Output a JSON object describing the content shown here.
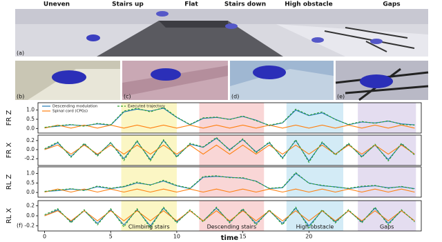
{
  "figure": {
    "scenes": [
      "Uneven",
      "Stairs up",
      "Flat",
      "Stairs down",
      "High obstacle",
      "Gaps"
    ],
    "tags": [
      "(a)",
      "(b)",
      "(c)",
      "(d)",
      "(e)",
      "(f)"
    ],
    "regions": [
      {
        "label": "Climbing stairs",
        "start": 5.8,
        "end": 10.0,
        "color": "#fbf6c4"
      },
      {
        "label": "Descending stairs",
        "start": 11.7,
        "end": 16.6,
        "color": "#f9d6d6"
      },
      {
        "label": "High obstacle",
        "start": 18.3,
        "end": 22.6,
        "color": "#d3ebf6"
      },
      {
        "label": "Gaps",
        "start": 23.7,
        "end": 28.1,
        "color": "#e4ddf0"
      }
    ]
  },
  "chart_data": [
    {
      "type": "line",
      "ylabel": "FR Z",
      "xlim": [
        -0.5,
        28.5
      ],
      "ylim": [
        -0.25,
        1.4
      ],
      "yticks": [
        {
          "value": 0,
          "label": "0.0"
        },
        {
          "value": 0.5,
          "label": "0.5"
        },
        {
          "value": 1,
          "label": "1.0"
        }
      ],
      "x": [
        0,
        1,
        2,
        3,
        4,
        5,
        6,
        7,
        8,
        9,
        10,
        11,
        12,
        13,
        14,
        15,
        16,
        17,
        18,
        19,
        20,
        21,
        22,
        23,
        24,
        25,
        26,
        27,
        28
      ],
      "series": [
        {
          "name": "Descending modulation",
          "color": "#1f77b4",
          "values": [
            0.05,
            0.12,
            0.2,
            0.15,
            0.25,
            0.18,
            0.9,
            1.05,
            0.95,
            1.1,
            0.6,
            0.2,
            0.55,
            0.6,
            0.5,
            0.65,
            0.45,
            0.15,
            0.3,
            1.0,
            0.7,
            0.85,
            0.5,
            0.2,
            0.35,
            0.3,
            0.4,
            0.25,
            0.2
          ]
        },
        {
          "name": "Spinal cord (CPGs)",
          "color": "#ff7f0e",
          "values": [
            0.02,
            0.18,
            0.02,
            0.18,
            0.02,
            0.18,
            0.02,
            0.18,
            0.02,
            0.18,
            0.02,
            0.18,
            0.02,
            0.18,
            0.02,
            0.18,
            0.02,
            0.18,
            0.02,
            0.18,
            0.02,
            0.18,
            0.02,
            0.18,
            0.02,
            0.18,
            0.02,
            0.18,
            0.02
          ]
        },
        {
          "name": "Executed trajectory",
          "color": "#2ca02c",
          "dashed": true,
          "values": [
            0.06,
            0.15,
            0.22,
            0.12,
            0.28,
            0.2,
            0.95,
            1.1,
            0.9,
            1.15,
            0.62,
            0.22,
            0.58,
            0.62,
            0.48,
            0.68,
            0.42,
            0.18,
            0.32,
            1.05,
            0.72,
            0.9,
            0.48,
            0.22,
            0.38,
            0.28,
            0.42,
            0.22,
            0.18
          ]
        }
      ]
    },
    {
      "type": "line",
      "ylabel": "FR X",
      "xlim": [
        -0.5,
        28.5
      ],
      "ylim": [
        -0.35,
        0.32
      ],
      "yticks": [
        {
          "value": -0.2,
          "label": "-0.2"
        },
        {
          "value": 0,
          "label": "0.0"
        },
        {
          "value": 0.2,
          "label": "0.2"
        }
      ],
      "x": [
        0,
        1,
        2,
        3,
        4,
        5,
        6,
        7,
        8,
        9,
        10,
        11,
        12,
        13,
        14,
        15,
        16,
        17,
        18,
        19,
        20,
        21,
        22,
        23,
        24,
        25,
        26,
        27,
        28
      ],
      "series": [
        {
          "color": "#1f77b4",
          "values": [
            0.0,
            0.15,
            -0.15,
            0.12,
            -0.12,
            0.15,
            -0.2,
            0.18,
            -0.22,
            0.2,
            -0.15,
            0.12,
            0.05,
            0.25,
            0.0,
            0.22,
            -0.05,
            0.15,
            -0.18,
            0.2,
            -0.25,
            0.15,
            -0.1,
            0.12,
            -0.15,
            0.1,
            -0.22,
            0.12,
            -0.1
          ]
        },
        {
          "color": "#ff7f0e",
          "values": [
            0.0,
            0.1,
            -0.1,
            0.1,
            -0.1,
            0.1,
            -0.1,
            0.1,
            -0.1,
            0.1,
            -0.1,
            0.1,
            -0.1,
            0.1,
            -0.1,
            0.1,
            -0.1,
            0.1,
            -0.1,
            0.1,
            -0.1,
            0.1,
            -0.1,
            0.1,
            -0.1,
            0.1,
            -0.1,
            0.1,
            -0.1
          ]
        },
        {
          "color": "#2ca02c",
          "dashed": true,
          "values": [
            0.02,
            0.17,
            -0.17,
            0.14,
            -0.14,
            0.16,
            -0.24,
            0.2,
            -0.25,
            0.22,
            -0.17,
            0.14,
            0.06,
            0.27,
            -0.02,
            0.24,
            -0.07,
            0.17,
            -0.2,
            0.22,
            -0.28,
            0.17,
            -0.12,
            0.14,
            -0.17,
            0.12,
            -0.25,
            0.14,
            -0.12
          ]
        }
      ]
    },
    {
      "type": "line",
      "ylabel": "RL Z",
      "xlim": [
        -0.5,
        28.5
      ],
      "ylim": [
        -0.25,
        1.35
      ],
      "yticks": [
        {
          "value": 0,
          "label": "0.0"
        },
        {
          "value": 0.5,
          "label": "0.5"
        },
        {
          "value": 1,
          "label": "1.0"
        }
      ],
      "x": [
        0,
        1,
        2,
        3,
        4,
        5,
        6,
        7,
        8,
        9,
        10,
        11,
        12,
        13,
        14,
        15,
        16,
        17,
        18,
        19,
        20,
        21,
        22,
        23,
        24,
        25,
        26,
        27,
        28
      ],
      "series": [
        {
          "color": "#1f77b4",
          "values": [
            0.05,
            0.1,
            0.18,
            0.12,
            0.3,
            0.2,
            0.3,
            0.5,
            0.4,
            0.6,
            0.35,
            0.2,
            0.8,
            0.85,
            0.8,
            0.75,
            0.6,
            0.2,
            0.25,
            1.0,
            0.5,
            0.35,
            0.3,
            0.2,
            0.3,
            0.35,
            0.25,
            0.3,
            0.2
          ]
        },
        {
          "color": "#ff7f0e",
          "values": [
            0.02,
            0.18,
            0.02,
            0.18,
            0.02,
            0.18,
            0.02,
            0.18,
            0.02,
            0.18,
            0.02,
            0.18,
            0.02,
            0.18,
            0.02,
            0.18,
            0.02,
            0.18,
            0.02,
            0.18,
            0.02,
            0.18,
            0.02,
            0.18,
            0.02,
            0.18,
            0.02,
            0.18,
            0.02
          ]
        },
        {
          "color": "#2ca02c",
          "dashed": true,
          "values": [
            0.06,
            0.12,
            0.2,
            0.1,
            0.34,
            0.22,
            0.32,
            0.55,
            0.38,
            0.65,
            0.37,
            0.22,
            0.84,
            0.88,
            0.78,
            0.78,
            0.58,
            0.22,
            0.27,
            1.05,
            0.48,
            0.38,
            0.28,
            0.22,
            0.33,
            0.37,
            0.22,
            0.32,
            0.18
          ]
        }
      ]
    },
    {
      "type": "line",
      "ylabel": "RL X",
      "xlim": [
        -0.5,
        28.5
      ],
      "ylim": [
        -0.3,
        0.3
      ],
      "xlabel": "time",
      "xticks": [
        0,
        5,
        10,
        15,
        20
      ],
      "yticks": [
        {
          "value": -0.2,
          "label": "-0.2"
        },
        {
          "value": 0,
          "label": "0.0"
        },
        {
          "value": 0.2,
          "label": "0.2"
        }
      ],
      "x": [
        0,
        1,
        2,
        3,
        4,
        5,
        6,
        7,
        8,
        9,
        10,
        11,
        12,
        13,
        14,
        15,
        16,
        17,
        18,
        19,
        20,
        21,
        22,
        23,
        24,
        25,
        26,
        27,
        28
      ],
      "series": [
        {
          "color": "#1f77b4",
          "values": [
            0.0,
            0.12,
            -0.12,
            0.1,
            -0.15,
            0.12,
            -0.18,
            0.12,
            -0.2,
            0.15,
            -0.12,
            0.1,
            -0.1,
            0.15,
            -0.12,
            0.12,
            -0.15,
            0.1,
            -0.15,
            0.15,
            -0.2,
            0.1,
            -0.12,
            0.1,
            -0.12,
            0.15,
            -0.15,
            0.1,
            -0.1
          ]
        },
        {
          "color": "#ff7f0e",
          "values": [
            0.0,
            0.1,
            -0.1,
            0.1,
            -0.1,
            0.1,
            -0.1,
            0.1,
            -0.1,
            0.1,
            -0.1,
            0.1,
            -0.1,
            0.1,
            -0.1,
            0.1,
            -0.1,
            0.1,
            -0.1,
            0.1,
            -0.1,
            0.1,
            -0.1,
            0.1,
            -0.1,
            0.1,
            -0.1,
            0.1,
            -0.1
          ]
        },
        {
          "color": "#2ca02c",
          "dashed": true,
          "values": [
            0.02,
            0.14,
            -0.14,
            0.12,
            -0.18,
            0.14,
            -0.22,
            0.14,
            -0.24,
            0.17,
            -0.14,
            0.12,
            -0.12,
            0.17,
            -0.14,
            0.14,
            -0.18,
            0.12,
            -0.18,
            0.17,
            -0.24,
            0.12,
            -0.14,
            0.12,
            -0.14,
            0.17,
            -0.18,
            0.12,
            -0.12
          ]
        }
      ]
    }
  ]
}
